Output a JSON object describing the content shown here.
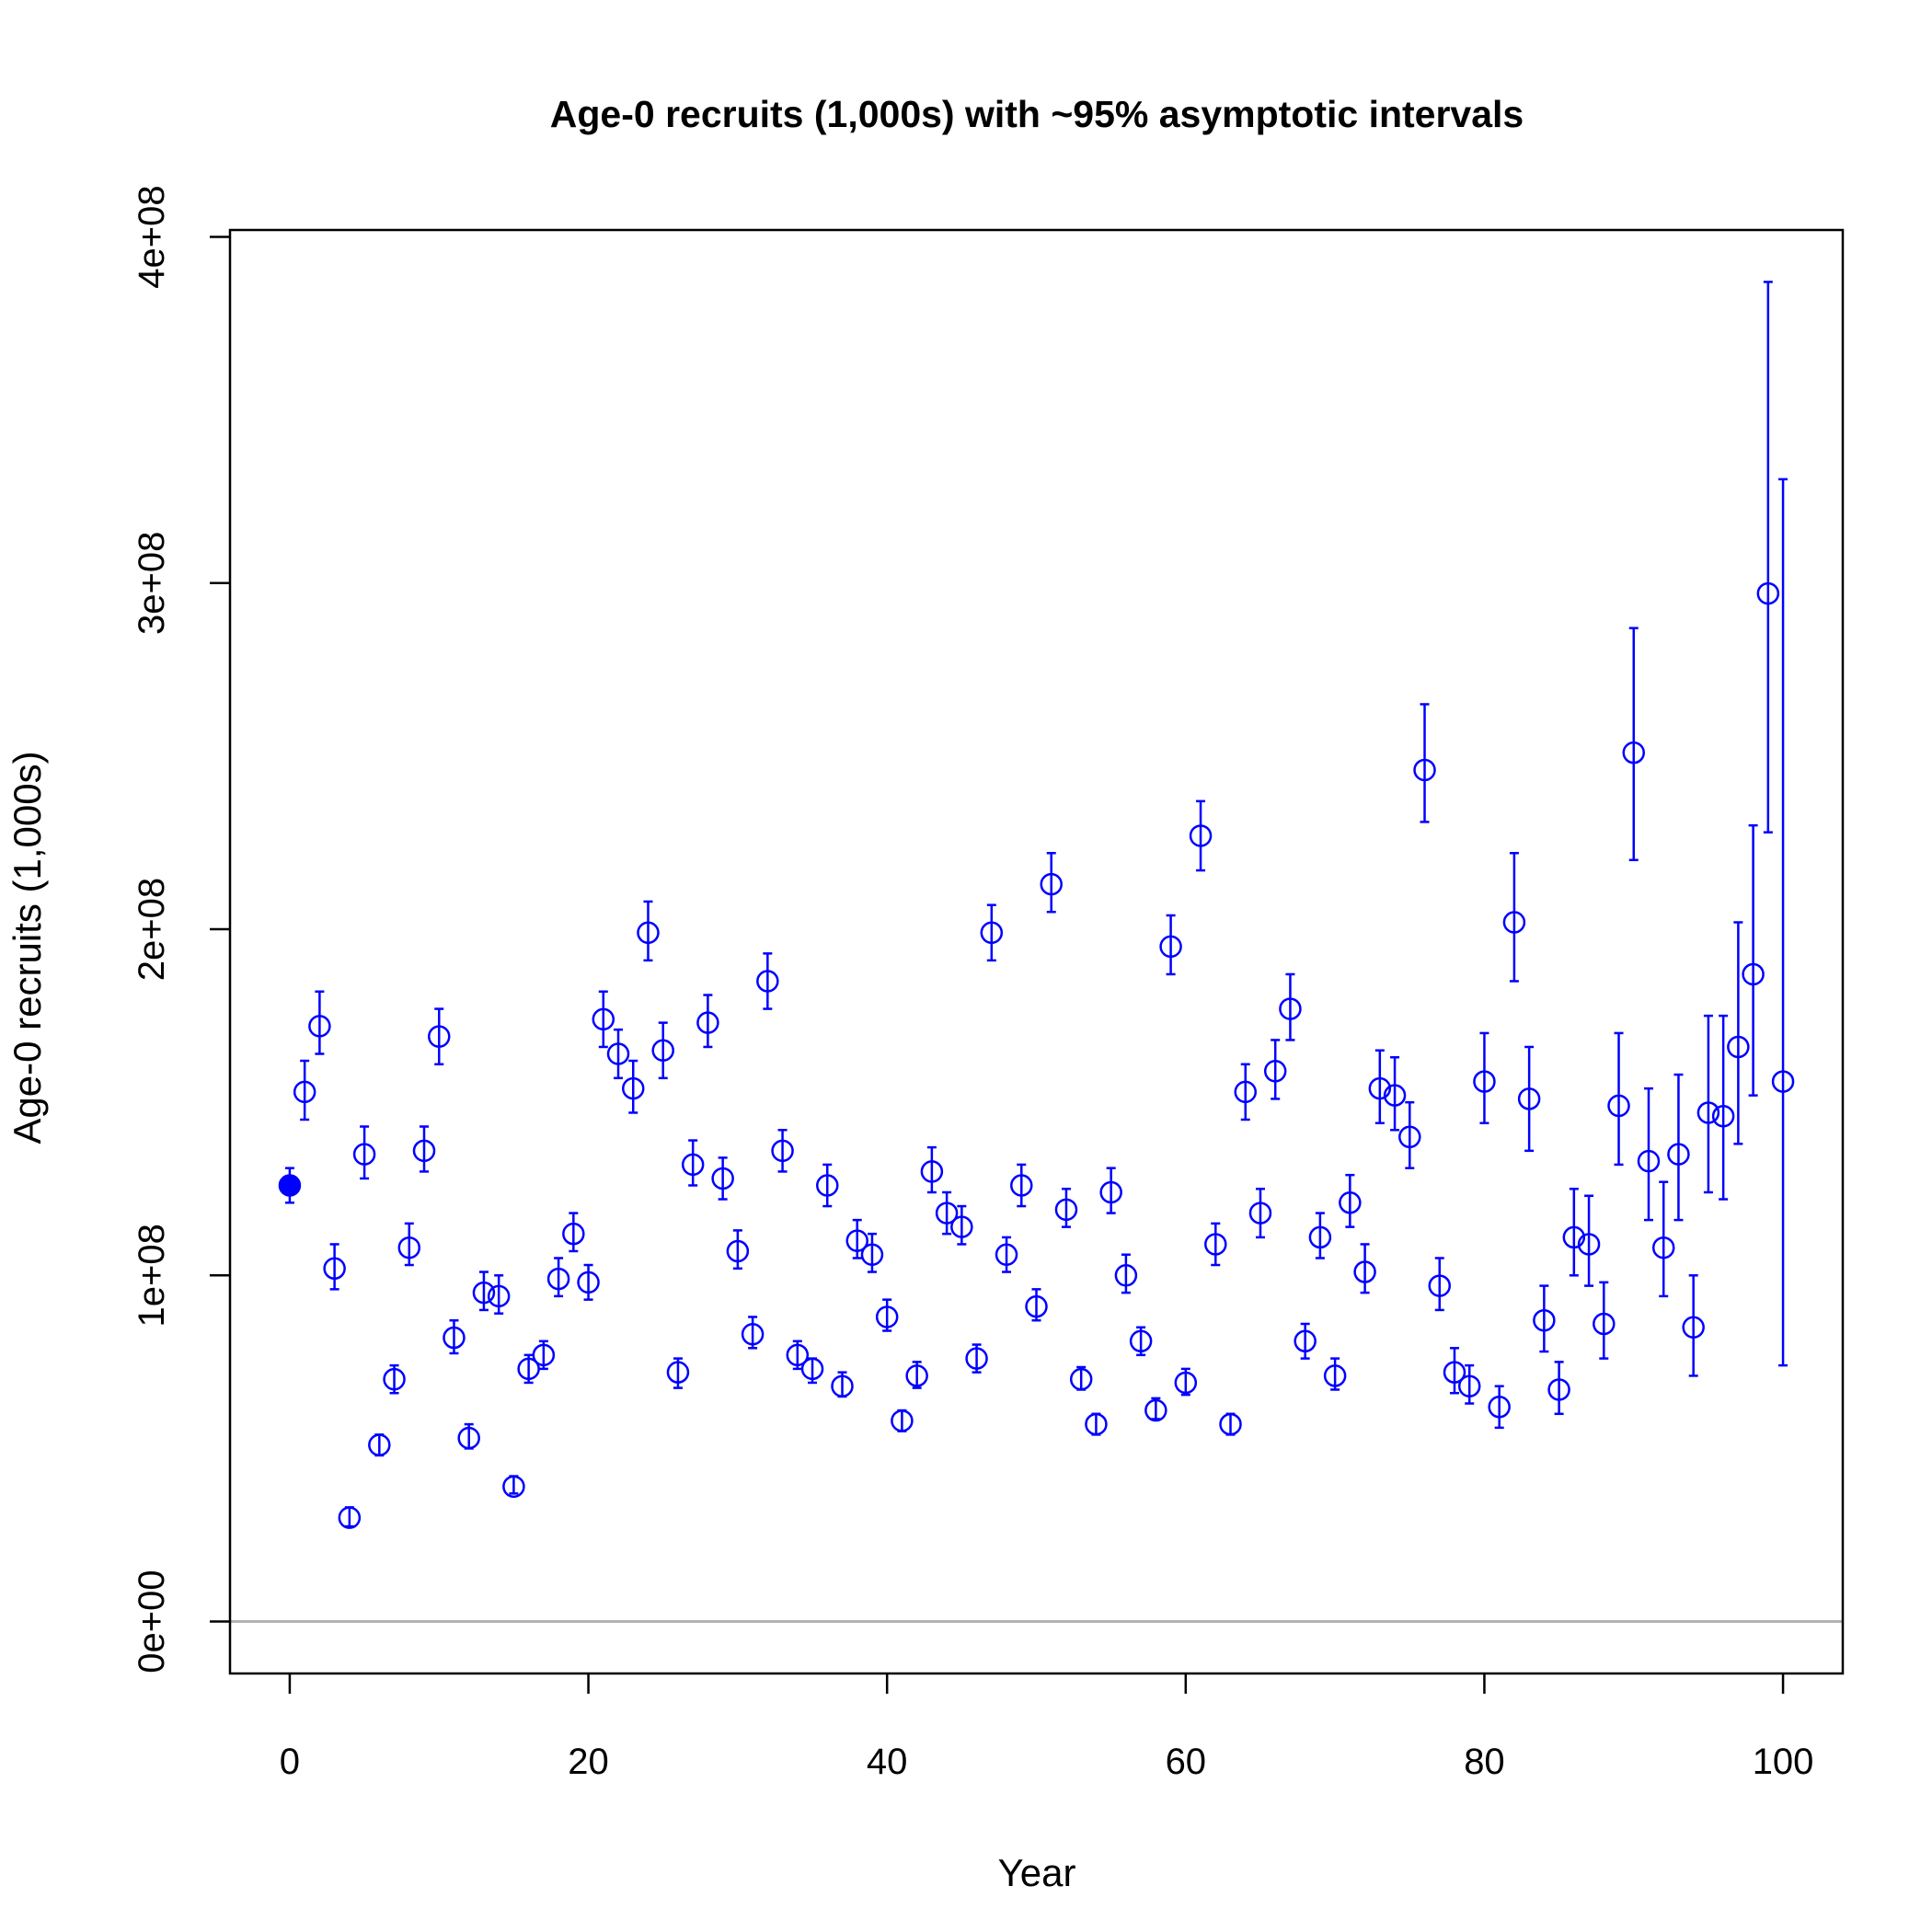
{
  "chart_data": {
    "type": "scatter",
    "title": "Age-0 recruits (1,000s) with ~95% asymptotic intervals",
    "xlabel": "Year",
    "ylabel": "Age-0 recruits (1,000s)",
    "xlim": [
      -4,
      104
    ],
    "ylim": [
      -15000000,
      402000000
    ],
    "x_ticks": [
      0,
      20,
      40,
      60,
      80,
      100
    ],
    "x_tick_labels": [
      "0",
      "20",
      "40",
      "60",
      "80",
      "100"
    ],
    "y_ticks": [
      0,
      100000000,
      200000000,
      300000000,
      400000000
    ],
    "y_tick_labels": [
      "0e+00",
      "1e+08",
      "2e+08",
      "3e+08",
      "4e+08"
    ],
    "reference_line": 0,
    "grid": false,
    "legend": "none",
    "colors": {
      "series": "#0000ff",
      "reference": "#b3b3b3",
      "axes": "#000000"
    },
    "x": [
      0,
      1,
      2,
      3,
      4,
      5,
      6,
      7,
      8,
      9,
      10,
      11,
      12,
      13,
      14,
      15,
      16,
      17,
      18,
      19,
      20,
      21,
      22,
      23,
      24,
      25,
      26,
      27,
      28,
      29,
      30,
      31,
      32,
      33,
      34,
      35,
      36,
      37,
      38,
      39,
      40,
      41,
      42,
      43,
      44,
      45,
      46,
      47,
      48,
      49,
      50,
      51,
      52,
      53,
      54,
      55,
      56,
      57,
      58,
      59,
      60,
      61,
      62,
      63,
      64,
      65,
      66,
      67,
      68,
      69,
      70,
      71,
      72,
      73,
      74,
      75,
      76,
      77,
      78,
      79,
      80,
      81,
      82,
      83,
      84,
      85,
      86,
      87,
      88,
      89,
      90,
      91,
      92,
      93,
      94,
      95,
      96,
      97,
      98,
      99,
      100
    ],
    "y": [
      126000000,
      153000000,
      172000000,
      102000000,
      30000000,
      135000000,
      51000000,
      70000000,
      108000000,
      136000000,
      169000000,
      82000000,
      53000000,
      95000000,
      94000000,
      39000000,
      73000000,
      77000000,
      99000000,
      112000000,
      98000000,
      174000000,
      164000000,
      154000000,
      199000000,
      165000000,
      72000000,
      132000000,
      173000000,
      128000000,
      107000000,
      83000000,
      185000000,
      136000000,
      77000000,
      73000000,
      126000000,
      68000000,
      110000000,
      106000000,
      88000000,
      58000000,
      71000000,
      130000000,
      118000000,
      114000000,
      76000000,
      199000000,
      106000000,
      126000000,
      91000000,
      213000000,
      119000000,
      70000000,
      57000000,
      124000000,
      100000000,
      81000000,
      61000000,
      195000000,
      69000000,
      227000000,
      109000000,
      57000000,
      153000000,
      118000000,
      159000000,
      177000000,
      81000000,
      111000000,
      71000000,
      121000000,
      101000000,
      154000000,
      152000000,
      140000000,
      246000000,
      97000000,
      72000000,
      68000000,
      156000000,
      62000000,
      202000000,
      151000000,
      87000000,
      67000000,
      111000000,
      109000000,
      86000000,
      149000000,
      251000000,
      133000000,
      108000000,
      135000000,
      85000000,
      147000000,
      146000000,
      166000000,
      187000000,
      297000000,
      156000000
    ],
    "lower": [
      121000000,
      145000000,
      164000000,
      96000000,
      27500000,
      128000000,
      48000000,
      66000000,
      103000000,
      130000000,
      161000000,
      77500000,
      50000000,
      90000000,
      89000000,
      37000000,
      69000000,
      73000000,
      94000000,
      107000000,
      93000000,
      166000000,
      157000000,
      147000000,
      191000000,
      157000000,
      67500000,
      126000000,
      166000000,
      122000000,
      102000000,
      79000000,
      177000000,
      130000000,
      73000000,
      69000000,
      120000000,
      65000000,
      105000000,
      101000000,
      84000000,
      55000000,
      67500000,
      124000000,
      112000000,
      109000000,
      72000000,
      191000000,
      101000000,
      120000000,
      87000000,
      205000000,
      114000000,
      67000000,
      54000000,
      118000000,
      95000000,
      77000000,
      58500000,
      187000000,
      65500000,
      217000000,
      103000000,
      54000000,
      145000000,
      111000000,
      151000000,
      168000000,
      76000000,
      105000000,
      67000000,
      114000000,
      95000000,
      144000000,
      142000000,
      131000000,
      231000000,
      90000000,
      66000000,
      63000000,
      144000000,
      56000000,
      185000000,
      136000000,
      78000000,
      60000000,
      100000000,
      97000000,
      76000000,
      132000000,
      220000000,
      116000000,
      94000000,
      116000000,
      71000000,
      124000000,
      122000000,
      138000000,
      152000000,
      228000000,
      74000000
    ],
    "upper": [
      131000000,
      162000000,
      182000000,
      109000000,
      33000000,
      143000000,
      54000000,
      74000000,
      115000000,
      143000000,
      177000000,
      87000000,
      57000000,
      101000000,
      100000000,
      42000000,
      77000000,
      81000000,
      105000000,
      118000000,
      103000000,
      182000000,
      171000000,
      162000000,
      208000000,
      173000000,
      76000000,
      139000000,
      181000000,
      134000000,
      113000000,
      88000000,
      193000000,
      142000000,
      81000000,
      76000000,
      132000000,
      72000000,
      116000000,
      112000000,
      93000000,
      61000000,
      75000000,
      137000000,
      124000000,
      120000000,
      80000000,
      207000000,
      111000000,
      132000000,
      96000000,
      222000000,
      125000000,
      73500000,
      60000000,
      131000000,
      106000000,
      85000000,
      64500000,
      204000000,
      73000000,
      237000000,
      115000000,
      60000000,
      161000000,
      125000000,
      168000000,
      187000000,
      86000000,
      118000000,
      76000000,
      129000000,
      109000000,
      165000000,
      163000000,
      150000000,
      265000000,
      105000000,
      79000000,
      74000000,
      170000000,
      68000000,
      222000000,
      166000000,
      97000000,
      75000000,
      125000000,
      123000000,
      98000000,
      170000000,
      287000000,
      154000000,
      127000000,
      158000000,
      100000000,
      175000000,
      175000000,
      202000000,
      230000000,
      387000000,
      330000000
    ],
    "filled_index": 0
  }
}
